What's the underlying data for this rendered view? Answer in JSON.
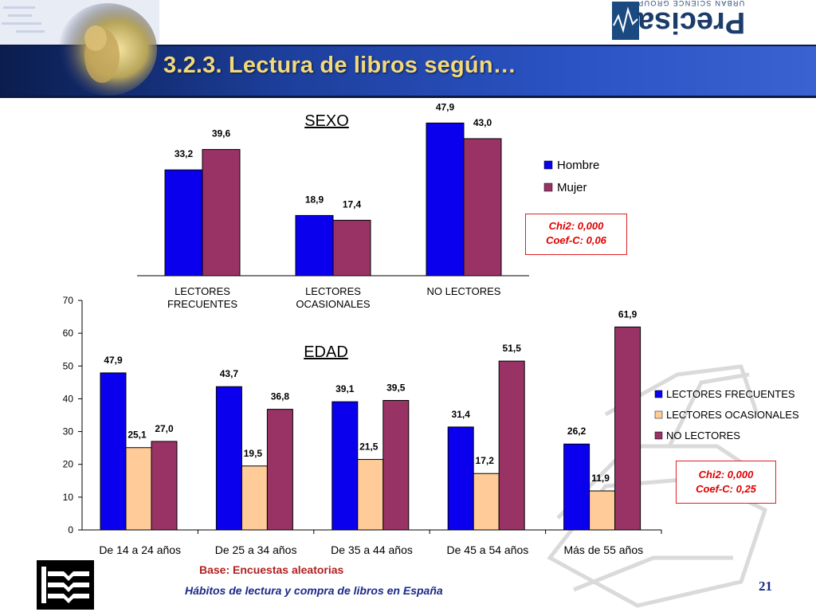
{
  "title": "3.2.3. Lectura de libros según…",
  "logo": {
    "word": "Precisa",
    "tagline": "URBAN SCIENCE GROUP"
  },
  "colors": {
    "hombre": "#0a00ee",
    "mujer": "#993366",
    "frecuentes": "#0a00ee",
    "ocasionales": "#ffcc99",
    "no_lectores": "#993366",
    "title": "#f3d97a",
    "stats": "#e00000"
  },
  "chart_data": [
    {
      "type": "bar",
      "title": "SEXO",
      "categories": [
        "LECTORES FRECUENTES",
        "LECTORES OCASIONALES",
        "NO LECTORES"
      ],
      "series": [
        {
          "name": "Hombre",
          "values": [
            33.2,
            18.9,
            47.9
          ]
        },
        {
          "name": "Mujer",
          "values": [
            39.6,
            17.4,
            43.0
          ]
        }
      ],
      "value_labels": [
        [
          "33,2",
          "18,9",
          "47,9"
        ],
        [
          "39,6",
          "17,4",
          "43,0"
        ]
      ],
      "legend": "right",
      "ylim": [
        0,
        50
      ],
      "grid": false,
      "stats": [
        "Chi2: 0,000",
        "Coef-C: 0,06"
      ]
    },
    {
      "type": "bar",
      "title": "EDAD",
      "categories": [
        "De 14 a 24 años",
        "De 25 a 34 años",
        "De 35 a 44 años",
        "De 45 a 54 años",
        "Más de 55 años"
      ],
      "series": [
        {
          "name": "LECTORES FRECUENTES",
          "values": [
            47.9,
            43.7,
            39.1,
            31.4,
            26.2
          ]
        },
        {
          "name": "LECTORES OCASIONALES",
          "values": [
            25.1,
            19.5,
            21.5,
            17.2,
            11.9
          ]
        },
        {
          "name": "NO LECTORES",
          "values": [
            27.0,
            36.8,
            39.5,
            51.5,
            61.9
          ]
        }
      ],
      "value_labels": [
        [
          "47,9",
          "43,7",
          "39,1",
          "31,4",
          "26,2"
        ],
        [
          "25,1",
          "19,5",
          "21,5",
          "17,2",
          "11,9"
        ],
        [
          "27,0",
          "36,8",
          "39,5",
          "51,5",
          "61,9"
        ]
      ],
      "yticks": [
        "0",
        "10",
        "20",
        "30",
        "40",
        "50",
        "60",
        "70"
      ],
      "ylim": [
        0,
        70
      ],
      "legend": "right",
      "grid": false,
      "stats": [
        "Chi2: 0,000",
        "Coef-C: 0,25"
      ]
    }
  ],
  "footer": {
    "base": "Base: Encuestas aleatorias",
    "study": "Hábitos de lectura y compra de libros en España",
    "page": "21"
  }
}
